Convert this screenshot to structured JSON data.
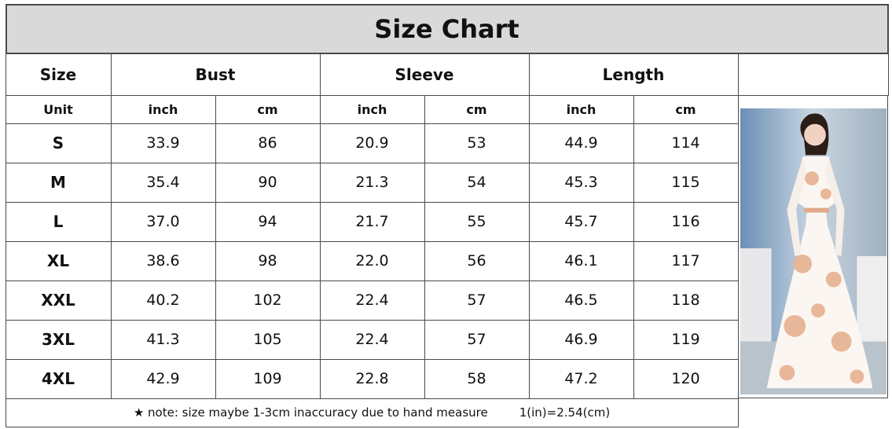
{
  "title": "Size Chart",
  "table": {
    "header": [
      "Size",
      "Bust",
      "Sleeve",
      "Length"
    ],
    "units": [
      "Unit",
      "inch",
      "cm",
      "inch",
      "cm",
      "inch",
      "cm"
    ],
    "rows": [
      [
        "S",
        "33.9",
        "86",
        "20.9",
        "53",
        "44.9",
        "114"
      ],
      [
        "M",
        "35.4",
        "90",
        "21.3",
        "54",
        "45.3",
        "115"
      ],
      [
        "L",
        "37.0",
        "94",
        "21.7",
        "55",
        "45.7",
        "116"
      ],
      [
        "XL",
        "38.6",
        "98",
        "22.0",
        "56",
        "46.1",
        "117"
      ],
      [
        "XXL",
        "40.2",
        "102",
        "22.4",
        "57",
        "46.5",
        "118"
      ],
      [
        "3XL",
        "41.3",
        "105",
        "22.4",
        "57",
        "46.9",
        "119"
      ],
      [
        "4XL",
        "42.9",
        "109",
        "22.8",
        "58",
        "47.2",
        "120"
      ]
    ]
  },
  "footer": {
    "note": "★ note: size maybe 1-3cm inaccuracy due to hand measure",
    "conversion": "1(in)=2.54(cm)"
  }
}
